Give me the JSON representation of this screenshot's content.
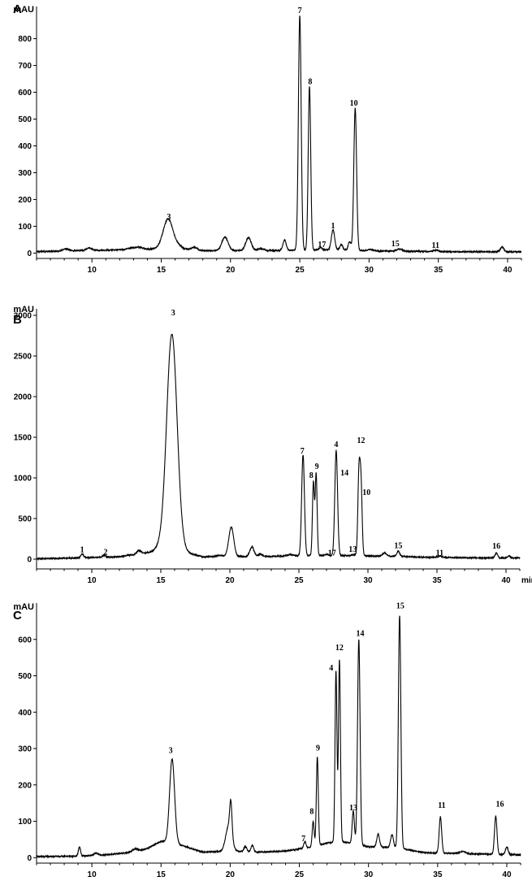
{
  "chart_data": [
    {
      "type": "line",
      "panel": "A",
      "ylabel": "mAU",
      "xlabel": "",
      "xlim": [
        6,
        41
      ],
      "ylim": [
        -20,
        920
      ],
      "xticks": [
        10,
        15,
        20,
        25,
        30,
        35,
        40
      ],
      "yticks": [
        0,
        100,
        200,
        300,
        400,
        500,
        600,
        700,
        800
      ],
      "baseline": [
        [
          6,
          5
        ],
        [
          8,
          8
        ],
        [
          10,
          10
        ],
        [
          12,
          12
        ],
        [
          14,
          14
        ],
        [
          15,
          18
        ],
        [
          16,
          18
        ],
        [
          18,
          9
        ],
        [
          20,
          10
        ],
        [
          22,
          9
        ],
        [
          24,
          10
        ],
        [
          26,
          12
        ],
        [
          28,
          12
        ],
        [
          30,
          8
        ],
        [
          32,
          7
        ],
        [
          34,
          6
        ],
        [
          36,
          5
        ],
        [
          38,
          5
        ],
        [
          41,
          5
        ]
      ],
      "peaks": [
        {
          "x": 8.1,
          "height": 8,
          "width": 0.2
        },
        {
          "x": 9.8,
          "height": 10,
          "width": 0.2
        },
        {
          "x": 12.8,
          "height": 5,
          "width": 0.3
        },
        {
          "x": 13.4,
          "height": 8,
          "width": 0.3
        },
        {
          "x": 15.5,
          "height": 110,
          "width": 0.35
        },
        {
          "x": 16.3,
          "height": 8,
          "width": 0.2
        },
        {
          "x": 17.4,
          "height": 10,
          "width": 0.2
        },
        {
          "x": 19.6,
          "height": 50,
          "width": 0.22
        },
        {
          "x": 21.3,
          "height": 48,
          "width": 0.2
        },
        {
          "x": 22.2,
          "height": 8,
          "width": 0.2
        },
        {
          "x": 23.9,
          "height": 38,
          "width": 0.12
        },
        {
          "x": 25.0,
          "height": 875,
          "width": 0.1
        },
        {
          "x": 25.7,
          "height": 610,
          "width": 0.09
        },
        {
          "x": 26.5,
          "height": 8,
          "width": 0.1
        },
        {
          "x": 27.4,
          "height": 75,
          "width": 0.12
        },
        {
          "x": 28.0,
          "height": 20,
          "width": 0.1
        },
        {
          "x": 28.6,
          "height": 32,
          "width": 0.1
        },
        {
          "x": 29.0,
          "height": 530,
          "width": 0.1
        },
        {
          "x": 30.1,
          "height": 6,
          "width": 0.2
        },
        {
          "x": 32.2,
          "height": 8,
          "width": 0.2
        },
        {
          "x": 34.8,
          "height": 5,
          "width": 0.2
        },
        {
          "x": 39.6,
          "height": 18,
          "width": 0.12
        }
      ],
      "labels": [
        {
          "text": "3",
          "x": 15.55,
          "y": 125
        },
        {
          "text": "7",
          "x": 25.0,
          "y": 895
        },
        {
          "text": "8",
          "x": 25.75,
          "y": 630
        },
        {
          "text": "1",
          "x": 27.4,
          "y": 92
        },
        {
          "text": "10",
          "x": 28.9,
          "y": 550
        },
        {
          "text": "17",
          "x": 26.6,
          "y": 22
        },
        {
          "text": "15",
          "x": 31.9,
          "y": 26
        },
        {
          "text": "11",
          "x": 34.8,
          "y": 20
        }
      ]
    },
    {
      "type": "line",
      "panel": "B",
      "ylabel": "mAU",
      "xlabel": "min",
      "xlim": [
        6,
        41
      ],
      "ylim": [
        -120,
        3080
      ],
      "xticks": [
        10,
        15,
        20,
        25,
        30,
        35,
        40
      ],
      "yticks": [
        0,
        500,
        1000,
        1500,
        2000,
        2500,
        3000
      ],
      "baseline": [
        [
          6,
          5
        ],
        [
          9,
          15
        ],
        [
          12,
          30
        ],
        [
          14,
          80
        ],
        [
          15,
          110
        ],
        [
          16,
          120
        ],
        [
          18,
          30
        ],
        [
          20,
          35
        ],
        [
          22,
          30
        ],
        [
          24,
          40
        ],
        [
          26,
          45
        ],
        [
          28,
          45
        ],
        [
          30,
          40
        ],
        [
          32,
          35
        ],
        [
          34,
          25
        ],
        [
          36,
          20
        ],
        [
          38,
          15
        ],
        [
          41,
          15
        ]
      ],
      "peaks": [
        {
          "x": 9.3,
          "height": 50,
          "width": 0.1
        },
        {
          "x": 10.9,
          "height": 25,
          "width": 0.1
        },
        {
          "x": 13.4,
          "height": 40,
          "width": 0.15
        },
        {
          "x": 14.8,
          "height": 30,
          "width": 0.25
        },
        {
          "x": 15.8,
          "height": 2650,
          "width": 0.38
        },
        {
          "x": 19.2,
          "height": 15,
          "width": 0.2
        },
        {
          "x": 20.1,
          "height": 360,
          "width": 0.18
        },
        {
          "x": 21.6,
          "height": 120,
          "width": 0.15
        },
        {
          "x": 22.2,
          "height": 30,
          "width": 0.15
        },
        {
          "x": 24.4,
          "height": 15,
          "width": 0.2
        },
        {
          "x": 25.3,
          "height": 1240,
          "width": 0.1
        },
        {
          "x": 26.05,
          "height": 900,
          "width": 0.07
        },
        {
          "x": 26.25,
          "height": 1000,
          "width": 0.07
        },
        {
          "x": 27.0,
          "height": 15,
          "width": 0.1
        },
        {
          "x": 27.7,
          "height": 1290,
          "width": 0.1
        },
        {
          "x": 29.0,
          "height": 15,
          "width": 0.15
        },
        {
          "x": 29.35,
          "height": 1000,
          "width": 0.08
        },
        {
          "x": 29.5,
          "height": 850,
          "width": 0.08
        },
        {
          "x": 31.2,
          "height": 40,
          "width": 0.15
        },
        {
          "x": 32.2,
          "height": 65,
          "width": 0.1
        },
        {
          "x": 35.2,
          "height": 15,
          "width": 0.15
        },
        {
          "x": 39.3,
          "height": 60,
          "width": 0.1
        },
        {
          "x": 40.2,
          "height": 25,
          "width": 0.1
        }
      ],
      "labels": [
        {
          "text": "1",
          "x": 9.3,
          "y": 85
        },
        {
          "text": "2",
          "x": 11.0,
          "y": 55
        },
        {
          "text": "3",
          "x": 15.9,
          "y": 3000
        },
        {
          "text": "7",
          "x": 25.25,
          "y": 1300
        },
        {
          "text": "8",
          "x": 25.9,
          "y": 1000
        },
        {
          "text": "9",
          "x": 26.3,
          "y": 1110
        },
        {
          "text": "4",
          "x": 27.7,
          "y": 1380
        },
        {
          "text": "14",
          "x": 28.3,
          "y": 1030
        },
        {
          "text": "12",
          "x": 29.5,
          "y": 1430
        },
        {
          "text": "10",
          "x": 29.9,
          "y": 790
        },
        {
          "text": "17",
          "x": 27.4,
          "y": 45
        },
        {
          "text": "13",
          "x": 28.9,
          "y": 90
        },
        {
          "text": "15",
          "x": 32.2,
          "y": 135
        },
        {
          "text": "11",
          "x": 35.2,
          "y": 45
        },
        {
          "text": "16",
          "x": 39.3,
          "y": 130
        }
      ]
    },
    {
      "type": "line",
      "panel": "C",
      "ylabel": "mAU",
      "xlabel": "",
      "xlim": [
        6,
        41
      ],
      "ylim": [
        -15,
        700
      ],
      "xticks": [
        10,
        15,
        20,
        25,
        30,
        35,
        40
      ],
      "yticks": [
        0,
        100,
        200,
        300,
        400,
        500,
        600
      ],
      "baseline": [
        [
          6,
          3
        ],
        [
          9,
          4
        ],
        [
          11,
          8
        ],
        [
          13,
          15
        ],
        [
          14,
          25
        ],
        [
          15,
          45
        ],
        [
          16,
          40
        ],
        [
          18,
          15
        ],
        [
          20,
          18
        ],
        [
          22,
          15
        ],
        [
          24,
          18
        ],
        [
          26,
          30
        ],
        [
          27,
          40
        ],
        [
          28,
          45
        ],
        [
          30,
          30
        ],
        [
          32,
          28
        ],
        [
          34,
          14
        ],
        [
          36,
          12
        ],
        [
          38,
          10
        ],
        [
          41,
          8
        ]
      ],
      "peaks": [
        {
          "x": 9.1,
          "height": 25,
          "width": 0.08
        },
        {
          "x": 10.3,
          "height": 6,
          "width": 0.15
        },
        {
          "x": 13.1,
          "height": 8,
          "width": 0.2
        },
        {
          "x": 15.8,
          "height": 230,
          "width": 0.18
        },
        {
          "x": 19.9,
          "height": 70,
          "width": 0.22
        },
        {
          "x": 20.05,
          "height": 85,
          "width": 0.08
        },
        {
          "x": 21.1,
          "height": 15,
          "width": 0.1
        },
        {
          "x": 21.6,
          "height": 18,
          "width": 0.1
        },
        {
          "x": 25.4,
          "height": 18,
          "width": 0.08
        },
        {
          "x": 26.0,
          "height": 70,
          "width": 0.07
        },
        {
          "x": 26.3,
          "height": 245,
          "width": 0.07
        },
        {
          "x": 27.65,
          "height": 470,
          "width": 0.07
        },
        {
          "x": 27.9,
          "height": 500,
          "width": 0.07
        },
        {
          "x": 28.9,
          "height": 90,
          "width": 0.08
        },
        {
          "x": 29.3,
          "height": 565,
          "width": 0.09
        },
        {
          "x": 30.7,
          "height": 35,
          "width": 0.1
        },
        {
          "x": 31.7,
          "height": 35,
          "width": 0.1
        },
        {
          "x": 32.25,
          "height": 640,
          "width": 0.09
        },
        {
          "x": 35.2,
          "height": 100,
          "width": 0.09
        },
        {
          "x": 36.8,
          "height": 6,
          "width": 0.2
        },
        {
          "x": 39.2,
          "height": 105,
          "width": 0.09
        },
        {
          "x": 40.0,
          "height": 20,
          "width": 0.1
        }
      ],
      "labels": [
        {
          "text": "3",
          "x": 15.7,
          "y": 288
        },
        {
          "text": "7",
          "x": 25.3,
          "y": 45
        },
        {
          "text": "8",
          "x": 25.9,
          "y": 120
        },
        {
          "text": "9",
          "x": 26.35,
          "y": 295
        },
        {
          "text": "4",
          "x": 27.3,
          "y": 515
        },
        {
          "text": "12",
          "x": 27.9,
          "y": 570
        },
        {
          "text": "13",
          "x": 28.9,
          "y": 130
        },
        {
          "text": "14",
          "x": 29.4,
          "y": 610
        },
        {
          "text": "15",
          "x": 32.3,
          "y": 685
        },
        {
          "text": "11",
          "x": 35.3,
          "y": 137
        },
        {
          "text": "16",
          "x": 39.5,
          "y": 140
        }
      ]
    }
  ]
}
